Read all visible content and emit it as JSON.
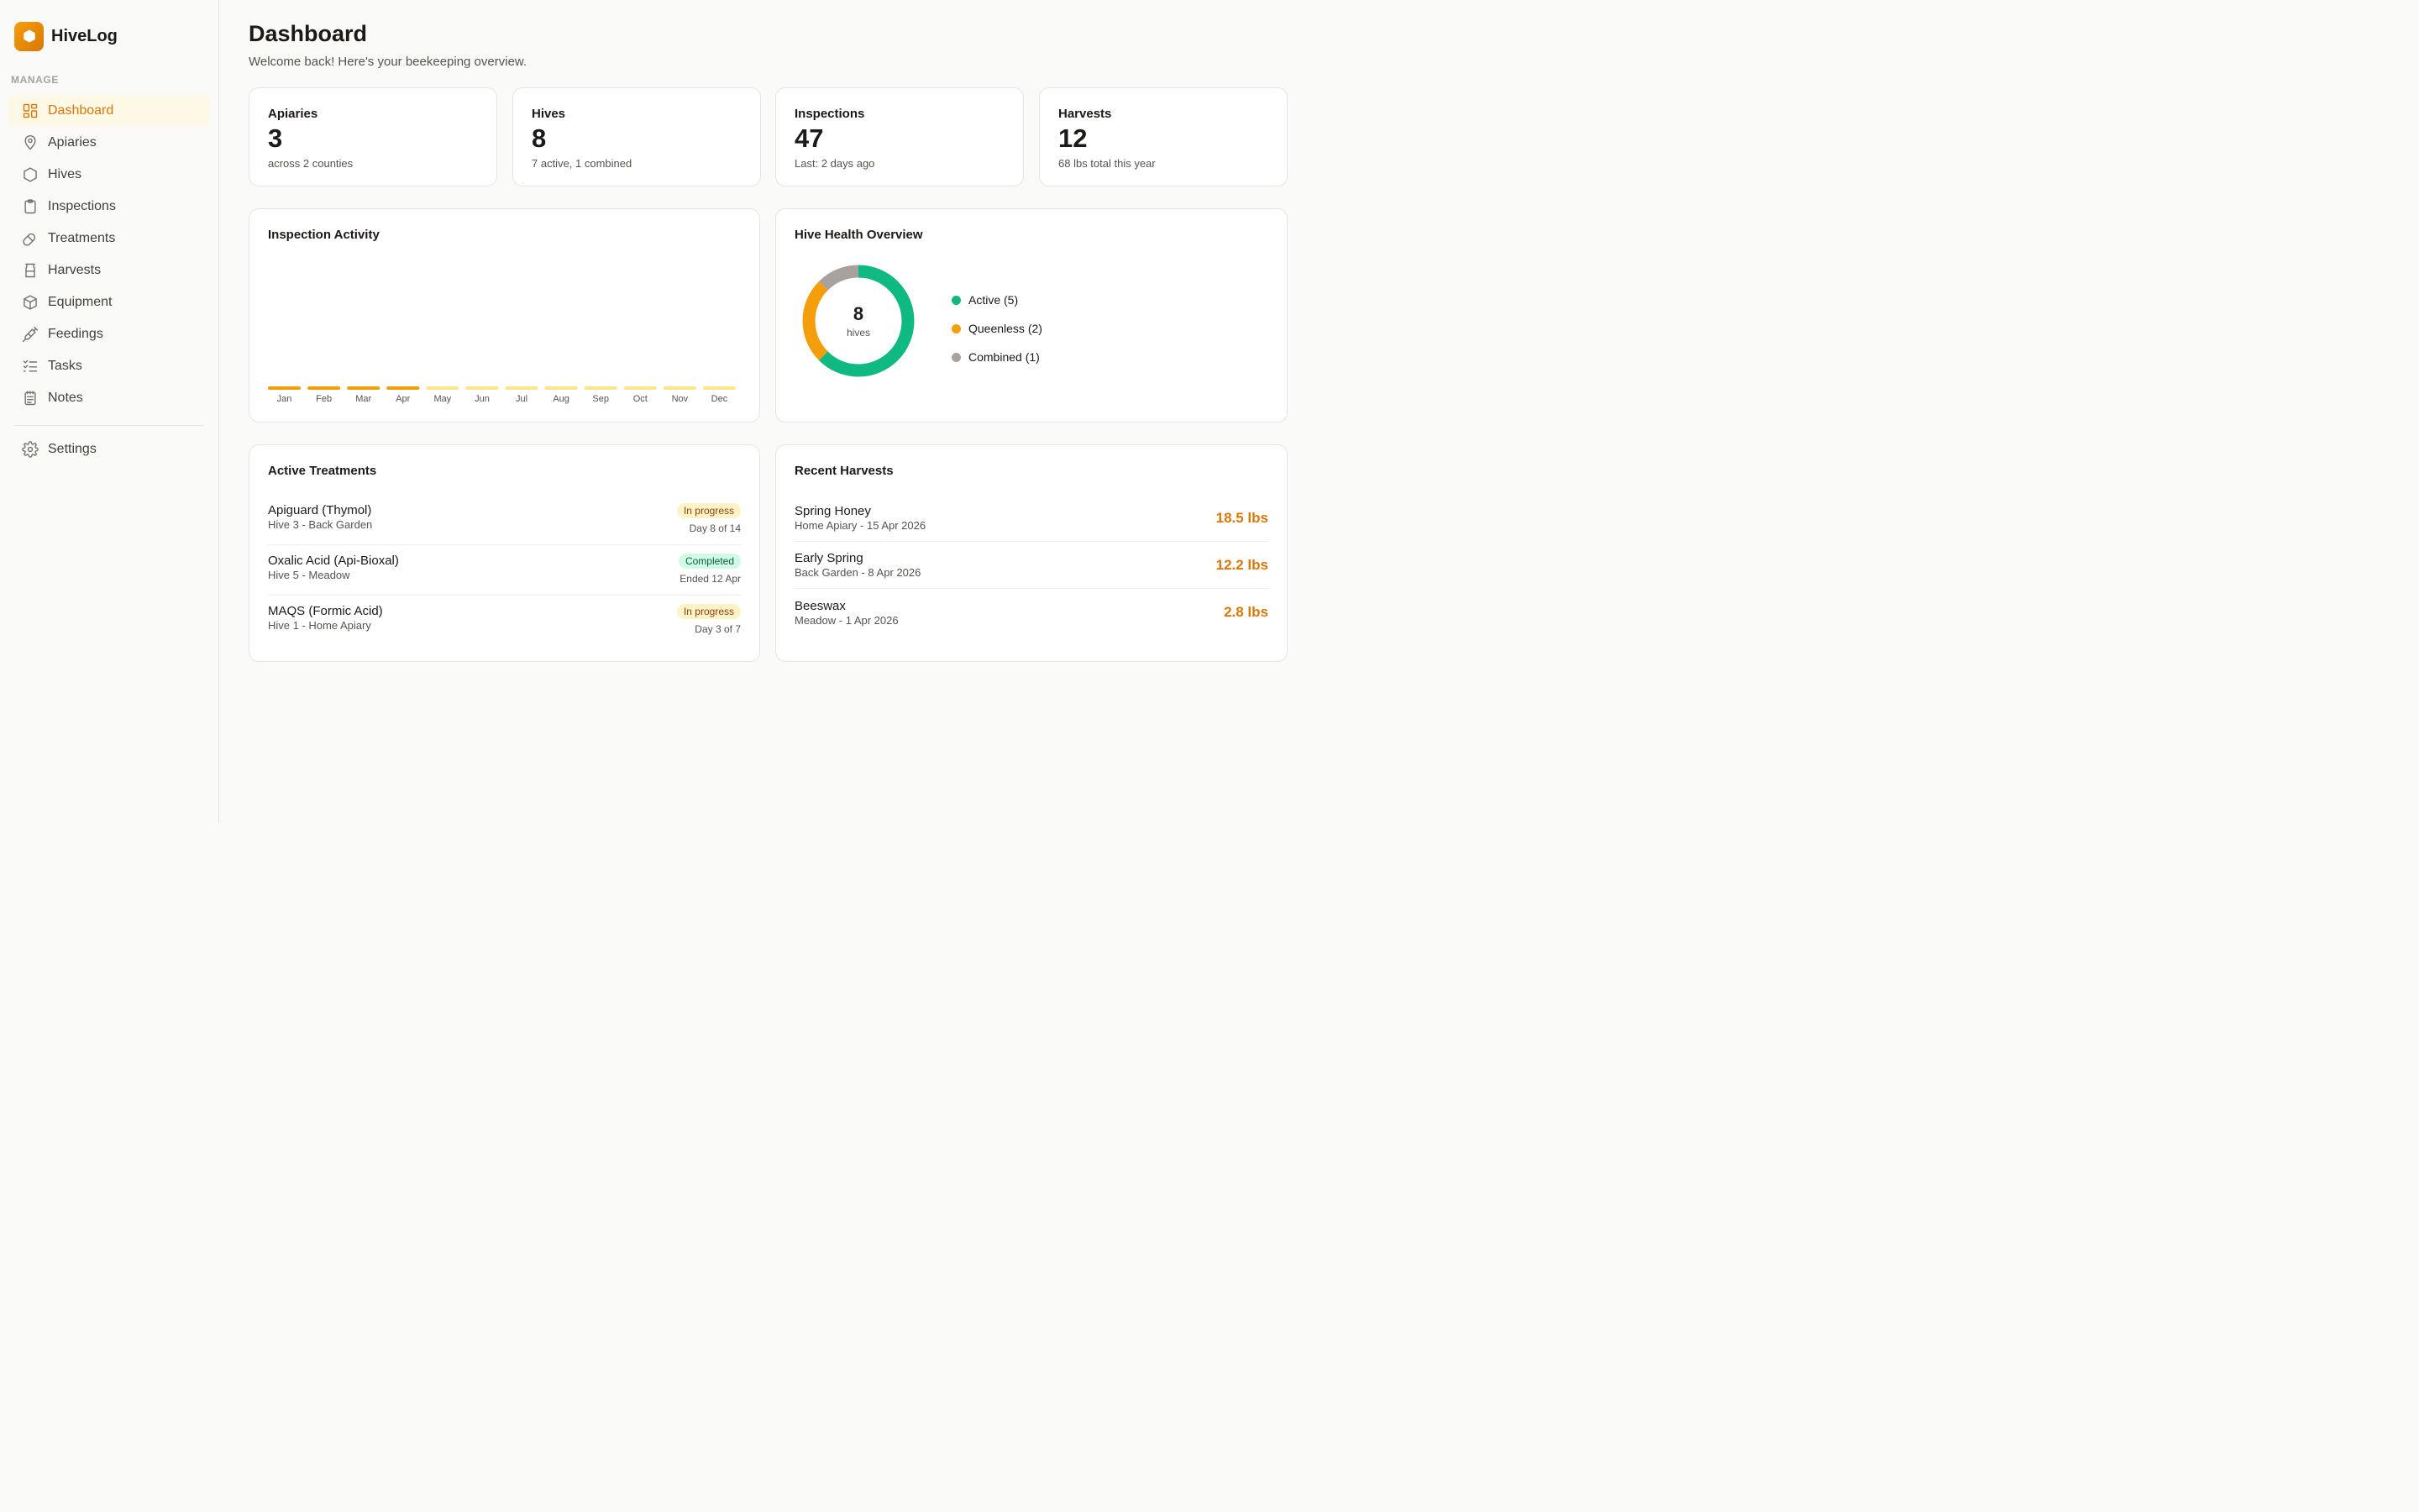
{
  "brand": {
    "name": "HiveLog",
    "accent": "#d97706"
  },
  "sidebar": {
    "section_label": "MANAGE",
    "items": [
      {
        "label": "Dashboard",
        "icon": "grid-icon",
        "active": true
      },
      {
        "label": "Apiaries",
        "icon": "map-pin-icon"
      },
      {
        "label": "Hives",
        "icon": "hexagon-icon"
      },
      {
        "label": "Inspections",
        "icon": "clipboard-icon"
      },
      {
        "label": "Treatments",
        "icon": "pill-icon"
      },
      {
        "label": "Harvests",
        "icon": "jar-icon"
      },
      {
        "label": "Equipment",
        "icon": "box-icon"
      },
      {
        "label": "Feedings",
        "icon": "syringe-icon"
      },
      {
        "label": "Tasks",
        "icon": "checklist-icon"
      },
      {
        "label": "Notes",
        "icon": "notepad-icon"
      }
    ],
    "settings": {
      "label": "Settings",
      "icon": "gear-icon"
    }
  },
  "header": {
    "title": "Dashboard",
    "subtitle": "Welcome back! Here's your beekeeping overview."
  },
  "stats": [
    {
      "title": "Apiaries",
      "value": "3",
      "sub": "across 2 counties"
    },
    {
      "title": "Hives",
      "value": "8",
      "sub": "7 active, 1 combined"
    },
    {
      "title": "Inspections",
      "value": "47",
      "sub": "Last: 2 days ago"
    },
    {
      "title": "Harvests",
      "value": "12",
      "sub": "68 lbs total this year"
    }
  ],
  "activity": {
    "title": "Inspection Activity",
    "chart_data": {
      "type": "bar",
      "categories": [
        "Jan",
        "Feb",
        "Mar",
        "Apr",
        "May",
        "Jun",
        "Jul",
        "Aug",
        "Sep",
        "Oct",
        "Nov",
        "Dec"
      ],
      "values": [
        0,
        0,
        0,
        0,
        0,
        0,
        0,
        0,
        0,
        0,
        0,
        0
      ],
      "colors": {
        "past": "#f59e0b",
        "future": "#fde68a"
      },
      "past_months": 4,
      "grid": false
    }
  },
  "health": {
    "title": "Hive Health Overview",
    "total": "8",
    "total_label": "hives",
    "chart_data": {
      "type": "pie",
      "labels": [
        "Active (5)",
        "Queenless (2)",
        "Combined (1)"
      ],
      "values": [
        5,
        2,
        1
      ],
      "colors": [
        "#10b981",
        "#f59e0b",
        "#a8a29e"
      ]
    }
  },
  "treatments": {
    "title": "Active Treatments",
    "items": [
      {
        "name": "Apiguard (Thymol)",
        "sub": "Hive 3 - Back Garden",
        "status": "In progress",
        "status_type": "progress",
        "note": "Day 8 of 14"
      },
      {
        "name": "Oxalic Acid (Api-Bioxal)",
        "sub": "Hive 5 - Meadow",
        "status": "Completed",
        "status_type": "done",
        "note": "Ended 12 Apr"
      },
      {
        "name": "MAQS (Formic Acid)",
        "sub": "Hive 1 - Home Apiary",
        "status": "In progress",
        "status_type": "progress",
        "note": "Day 3 of 7"
      }
    ]
  },
  "harvests": {
    "title": "Recent Harvests",
    "items": [
      {
        "name": "Spring Honey",
        "sub": "Home Apiary - 15 Apr 2026",
        "amount": "18.5 lbs"
      },
      {
        "name": "Early Spring",
        "sub": "Back Garden - 8 Apr 2026",
        "amount": "12.2 lbs"
      },
      {
        "name": "Beeswax",
        "sub": "Meadow - 1 Apr 2026",
        "amount": "2.8 lbs"
      }
    ]
  }
}
